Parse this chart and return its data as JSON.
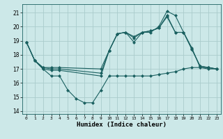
{
  "title": "",
  "xlabel": "Humidex (Indice chaleur)",
  "bg_color": "#cce8e8",
  "grid_color": "#aacccc",
  "line_color": "#1a6060",
  "xlim": [
    -0.5,
    23.5
  ],
  "ylim": [
    13.8,
    21.6
  ],
  "yticks": [
    14,
    15,
    16,
    17,
    18,
    19,
    20,
    21
  ],
  "xticks": [
    0,
    1,
    2,
    3,
    4,
    5,
    6,
    7,
    8,
    9,
    10,
    11,
    12,
    13,
    14,
    15,
    16,
    17,
    18,
    19,
    20,
    21,
    22,
    23
  ],
  "series": [
    {
      "x": [
        0,
        1,
        2,
        3,
        4,
        5,
        6,
        7,
        8,
        9,
        10,
        11,
        12,
        13,
        14,
        15,
        16,
        17,
        18,
        19,
        20,
        21,
        22,
        23
      ],
      "y": [
        18.9,
        17.6,
        17.0,
        16.5,
        16.5,
        15.5,
        14.9,
        14.6,
        14.6,
        15.5,
        16.5,
        16.5,
        16.5,
        16.5,
        16.5,
        16.5,
        16.6,
        16.7,
        16.8,
        17.0,
        17.1,
        17.1,
        17.0,
        17.0
      ]
    },
    {
      "x": [
        0,
        1,
        2,
        3,
        4,
        9,
        10,
        11,
        12,
        13,
        14,
        15,
        16,
        17,
        18,
        19,
        20,
        21,
        22,
        23
      ],
      "y": [
        18.9,
        17.6,
        17.0,
        16.9,
        16.9,
        16.5,
        18.3,
        19.5,
        19.6,
        18.9,
        19.6,
        19.6,
        20.0,
        21.1,
        20.8,
        19.6,
        18.5,
        17.1,
        17.1,
        17.0
      ]
    },
    {
      "x": [
        0,
        1,
        2,
        3,
        4,
        9,
        10,
        11,
        12,
        13,
        14,
        15,
        16,
        17,
        18,
        19,
        20,
        21,
        22,
        23
      ],
      "y": [
        18.9,
        17.6,
        17.1,
        17.0,
        17.0,
        16.7,
        18.3,
        19.5,
        19.6,
        19.2,
        19.6,
        19.7,
        19.9,
        20.8,
        19.6,
        19.6,
        18.4,
        17.2,
        17.1,
        17.0
      ]
    },
    {
      "x": [
        0,
        1,
        2,
        3,
        4,
        9,
        10,
        11,
        12,
        13,
        14,
        15,
        16,
        17,
        18,
        19,
        20,
        21,
        22,
        23
      ],
      "y": [
        18.9,
        17.6,
        17.1,
        17.1,
        17.1,
        17.0,
        18.3,
        19.5,
        19.6,
        19.3,
        19.6,
        19.7,
        19.9,
        20.7,
        19.6,
        19.6,
        18.4,
        17.2,
        17.1,
        17.0
      ]
    }
  ]
}
